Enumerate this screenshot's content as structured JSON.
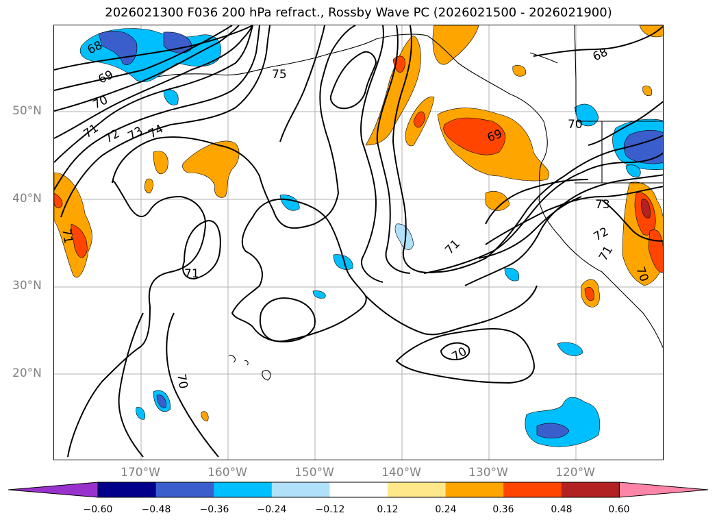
{
  "title": "2026021300 F036 200 hPa refract., Rossby Wave PC (2026021500 - 2026021900)",
  "lat_labels": [
    "50°N",
    "40°N",
    "30°N",
    "20°N"
  ],
  "lon_labels": [
    "170°W",
    "160°W",
    "150°W",
    "140°W",
    "130°W",
    "120°W"
  ],
  "contour_labels": [
    "68",
    "69",
    "70",
    "71",
    "72",
    "73",
    "74",
    "75",
    "71",
    "71",
    "70",
    "70",
    "69",
    "70",
    "73",
    "72",
    "71",
    "71",
    "70",
    "68"
  ],
  "colorbar": {
    "ticks": [
      "−0.60",
      "−0.48",
      "−0.36",
      "−0.24",
      "−0.12",
      "0.12",
      "0.24",
      "0.36",
      "0.48",
      "0.60"
    ],
    "colors": [
      "#9932cc",
      "#00008b",
      "#3a5fcd",
      "#00bfff",
      "#b0e0fa",
      "#ffffff",
      "#ffe88a",
      "#ffa500",
      "#ff4500",
      "#b22222",
      "#ff85a8"
    ]
  }
}
